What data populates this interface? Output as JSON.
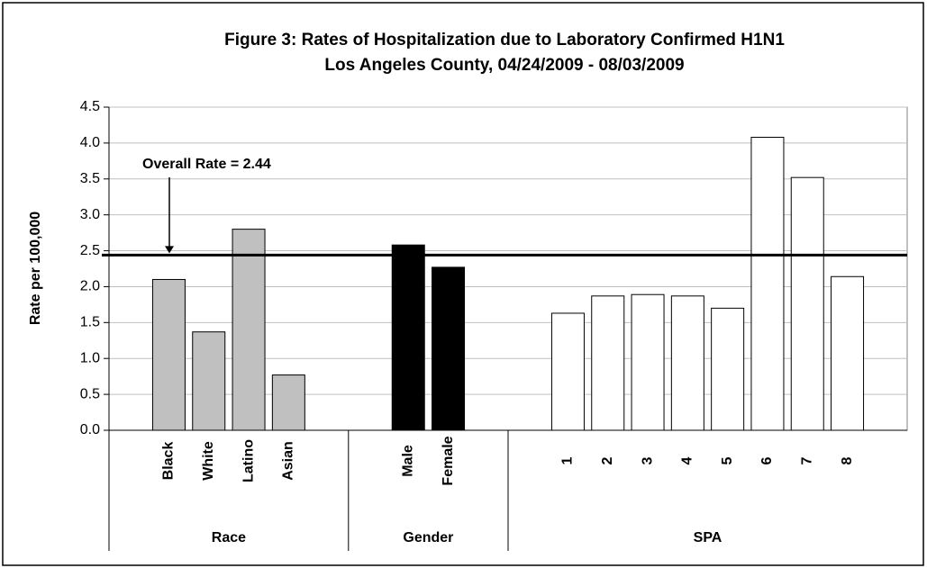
{
  "chart_data": {
    "type": "bar",
    "title": "Figure 3: Rates of Hospitalization due to Laboratory Confirmed H1N1",
    "subtitle": "Los Angeles County, 04/24/2009 - 08/03/2009",
    "y_label": "Rate per 100,000",
    "ylim": [
      0,
      4.5
    ],
    "yticks": [
      {
        "value": 0,
        "label": "0.0"
      },
      {
        "value": 0.5,
        "label": "0.5"
      },
      {
        "value": 1,
        "label": "1.0"
      },
      {
        "value": 1.5,
        "label": "1.5"
      },
      {
        "value": 2,
        "label": "2.0"
      },
      {
        "value": 2.5,
        "label": "2.5"
      },
      {
        "value": 3,
        "label": "3.0"
      },
      {
        "value": 3.5,
        "label": "3.5"
      },
      {
        "value": 4,
        "label": "4.0"
      },
      {
        "value": 4.5,
        "label": "4.5"
      }
    ],
    "grid": true,
    "reference": {
      "value": 2.44,
      "label": "Overall Rate = 2.44"
    },
    "groups": [
      {
        "label": "Race",
        "color": "#c0c0c0",
        "categories": [
          "Black",
          "White",
          "Latino",
          "Asian"
        ],
        "values": [
          2.1,
          1.37,
          2.8,
          0.77
        ]
      },
      {
        "label": "Gender",
        "color": "#000000",
        "categories": [
          "Male",
          "Female"
        ],
        "values": [
          2.58,
          2.27
        ]
      },
      {
        "label": "SPA",
        "color": "#ffffff",
        "categories": [
          "1",
          "2",
          "3",
          "4",
          "5",
          "6",
          "7",
          "8"
        ],
        "values": [
          1.63,
          1.87,
          1.89,
          1.87,
          1.7,
          4.08,
          3.52,
          2.14
        ]
      }
    ]
  }
}
